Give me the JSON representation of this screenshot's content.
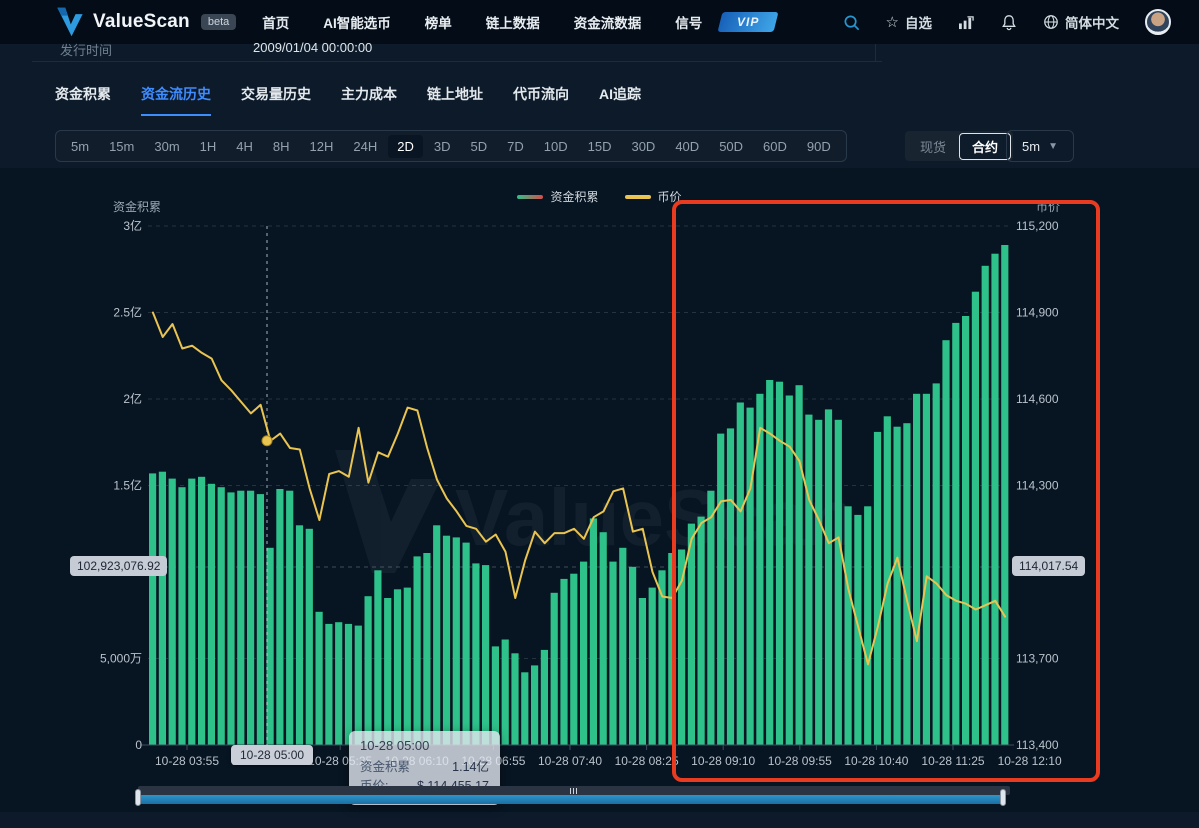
{
  "nav": {
    "brand": "ValueScan",
    "beta_label": "beta",
    "items": [
      "首页",
      "AI智能选币",
      "榜单",
      "链上数据",
      "资金流数据",
      "信号"
    ],
    "vip_label": "VIP",
    "watchlist_label": "自选",
    "language_label": "简体中文"
  },
  "info_row": {
    "label": "发行时间",
    "value": "2009/01/04 00:00:00"
  },
  "tabs": {
    "items": [
      "资金积累",
      "资金流历史",
      "交易量历史",
      "主力成本",
      "链上地址",
      "代币流向",
      "AI追踪"
    ],
    "active": "资金流历史"
  },
  "ranges": {
    "items": [
      "5m",
      "15m",
      "30m",
      "1H",
      "4H",
      "8H",
      "12H",
      "24H",
      "2D",
      "3D",
      "5D",
      "7D",
      "10D",
      "15D",
      "30D",
      "40D",
      "50D",
      "60D",
      "90D"
    ],
    "active": "2D"
  },
  "market_toggle": {
    "options": [
      "现货",
      "合约"
    ],
    "active": "合约"
  },
  "interval_select": {
    "value": "5m"
  },
  "watermark": "ValueScan",
  "colors": {
    "bar": "#2ec189",
    "line": "#e9c451",
    "annotation": "#e83b20",
    "accent": "#3f8cff",
    "grid": "rgba(198,212,226,0.16)",
    "axis_text": "#bac3cc"
  },
  "chart_data": {
    "type": "bar",
    "title": "",
    "legend": [
      {
        "name": "资金积累",
        "marker": "green-red-gradient-line"
      },
      {
        "name": "币价",
        "marker": "yellow-line"
      }
    ],
    "left_axis": {
      "title": "资金积累",
      "ticks": [
        {
          "label": "3亿",
          "value": 3.0
        },
        {
          "label": "2.5亿",
          "value": 2.5
        },
        {
          "label": "2亿",
          "value": 2.0
        },
        {
          "label": "1.5亿",
          "value": 1.5
        },
        {
          "label": "5,000万",
          "value": 0.5
        },
        {
          "label": "0",
          "value": 0
        }
      ],
      "range": [
        0,
        3.0
      ],
      "unit": "亿",
      "current_value_badge": "102,923,076.92",
      "current_value": 1.029
    },
    "right_axis": {
      "title": "币价",
      "ticks": [
        {
          "label": "115,200",
          "value": 115200
        },
        {
          "label": "114,900",
          "value": 114900
        },
        {
          "label": "114,600",
          "value": 114600
        },
        {
          "label": "114,300",
          "value": 114300
        },
        {
          "label": "113,700",
          "value": 113700
        },
        {
          "label": "113,400",
          "value": 113400
        }
      ],
      "range": [
        113400,
        115200
      ],
      "current_value_badge": "114,017.54",
      "current_value": 114017.54
    },
    "x_axis_labels": [
      "10-28 03:55",
      "10-28 04:40",
      "10-28 05:25",
      "10-28 06:10",
      "10-28 06:55",
      "10-28 07:40",
      "10-28 08:25",
      "10-28 09:10",
      "10-28 09:55",
      "10-28 10:40",
      "10-28 11:25",
      "10-28 12:10"
    ],
    "series": [
      {
        "name": "资金积累",
        "type": "bar",
        "axis": "left",
        "unit": "亿",
        "values": [
          1.57,
          1.58,
          1.54,
          1.49,
          1.54,
          1.55,
          1.51,
          1.49,
          1.46,
          1.47,
          1.47,
          1.45,
          1.14,
          1.48,
          1.47,
          1.27,
          1.25,
          0.77,
          0.7,
          0.71,
          0.7,
          0.69,
          0.86,
          1.01,
          0.85,
          0.9,
          0.91,
          1.09,
          1.11,
          1.27,
          1.21,
          1.2,
          1.17,
          1.05,
          1.04,
          0.57,
          0.61,
          0.53,
          0.42,
          0.46,
          0.55,
          0.88,
          0.96,
          0.99,
          1.06,
          1.31,
          1.23,
          1.06,
          1.14,
          1.03,
          0.85,
          0.91,
          1.01,
          1.11,
          1.13,
          1.28,
          1.32,
          1.47,
          1.8,
          1.83,
          1.98,
          1.95,
          2.03,
          2.11,
          2.1,
          2.02,
          2.08,
          1.91,
          1.88,
          1.94,
          1.88,
          1.38,
          1.33,
          1.38,
          1.81,
          1.9,
          1.84,
          1.86,
          2.03,
          2.03,
          2.09,
          2.34,
          2.44,
          2.48,
          2.62,
          2.77,
          2.84,
          2.89
        ]
      },
      {
        "name": "币价",
        "type": "line",
        "axis": "right",
        "values": [
          114900,
          114815,
          114860,
          114775,
          114785,
          114760,
          114740,
          114665,
          114630,
          114590,
          114550,
          114580,
          114455,
          114480,
          114430,
          114425,
          114290,
          114180,
          114340,
          114350,
          114330,
          114500,
          114310,
          114415,
          114400,
          114480,
          114570,
          114560,
          114430,
          114320,
          114255,
          114210,
          114160,
          114150,
          114105,
          114130,
          114070,
          113910,
          114040,
          114140,
          114100,
          114135,
          114135,
          114150,
          114115,
          114190,
          114210,
          114280,
          114290,
          114140,
          114150,
          114000,
          113915,
          113910,
          113970,
          114115,
          114170,
          114190,
          114245,
          114250,
          114210,
          114290,
          114500,
          114480,
          114455,
          114435,
          114385,
          114250,
          114180,
          114100,
          114120,
          113940,
          113810,
          113680,
          113810,
          113960,
          114050,
          113900,
          113760,
          113985,
          113960,
          113920,
          113900,
          113890,
          113870,
          113885,
          113900,
          113845
        ]
      }
    ],
    "hover": {
      "pointer_x_label": "10-28 05:00",
      "point_price": 114455.17,
      "tooltip": {
        "title": "10-28 05:00",
        "rows": [
          {
            "label": "资金积累",
            "value": "1.14亿"
          },
          {
            "label": "币价:",
            "value": "$ 114,455.17"
          }
        ]
      }
    },
    "annotation": {
      "shape": "rectangle",
      "color": "#e83b20",
      "note": "highlight of right-side rising region"
    },
    "grid": true,
    "legend_position": "top-center"
  }
}
